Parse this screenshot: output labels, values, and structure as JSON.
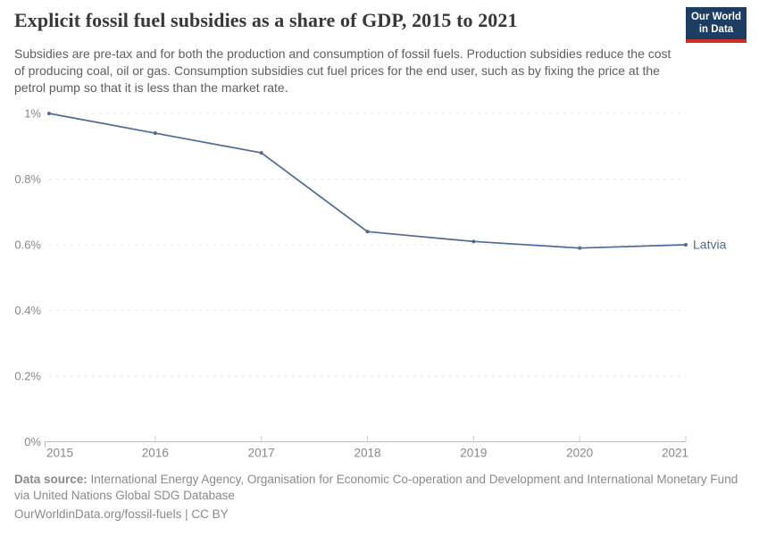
{
  "header": {
    "title": "Explicit fossil fuel subsidies as a share of GDP, 2015 to 2021",
    "subtitle": "Subsidies are pre-tax and for both the production and consumption of fossil fuels. Production subsidies reduce the cost of producing coal, oil or gas. Consumption subsidies cut fuel prices for the end user, such as by fixing the price at the petrol pump so that it is less than the market rate.",
    "logo": {
      "line1": "Our World",
      "line2": "in Data"
    }
  },
  "chart_data": {
    "type": "line",
    "title": "Explicit fossil fuel subsidies as a share of GDP, 2015 to 2021",
    "xlabel": "",
    "ylabel": "",
    "x": [
      2015,
      2016,
      2017,
      2018,
      2019,
      2020,
      2021
    ],
    "series": [
      {
        "name": "Latvia",
        "values": [
          1.0,
          0.94,
          0.88,
          0.64,
          0.61,
          0.59,
          0.6
        ],
        "color": "#4c6a9c"
      }
    ],
    "ylim": [
      0,
      1.0
    ],
    "yticks": [
      0,
      0.2,
      0.4,
      0.6,
      0.8,
      1.0
    ],
    "ytick_labels": [
      "0%",
      "0.2%",
      "0.4%",
      "0.6%",
      "0.8%",
      "1%"
    ],
    "xtick_labels": [
      "2015",
      "2016",
      "2017",
      "2018",
      "2019",
      "2020",
      "2021"
    ],
    "grid": "horizontal dashed",
    "legend_position": "entity label at line end"
  },
  "footer": {
    "datasource_label": "Data source:",
    "datasource_text": " International Energy Agency, Organisation for Economic Co-operation and Development and International Monetary Fund via United Nations Global SDG Database",
    "license_line": "OurWorldinData.org/fossil-fuels | CC BY"
  },
  "colors": {
    "line": "#4c6a9c",
    "entity_label": "#4c6a9c",
    "logo_background": "#1d3d63",
    "logo_stripe": "#cf2e27",
    "title_text": "#383838",
    "subtitle_text": "#5e5e5e",
    "axis_label_text": "#878787",
    "gridline": "#e3e3e3",
    "axis_line": "#b9b9b9"
  }
}
